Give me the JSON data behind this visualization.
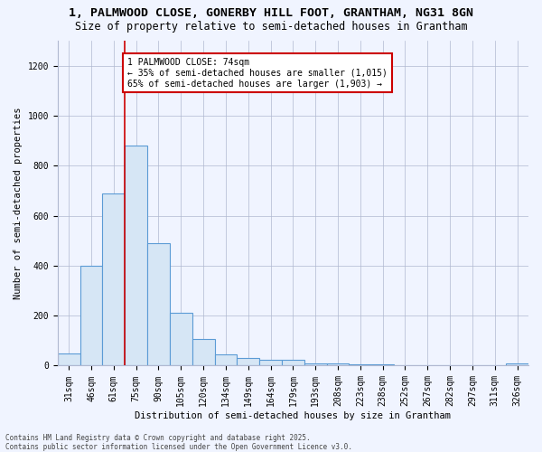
{
  "title": "1, PALMWOOD CLOSE, GONERBY HILL FOOT, GRANTHAM, NG31 8GN",
  "subtitle": "Size of property relative to semi-detached houses in Grantham",
  "xlabel": "Distribution of semi-detached houses by size in Grantham",
  "ylabel": "Number of semi-detached properties",
  "categories": [
    "31sqm",
    "46sqm",
    "61sqm",
    "75sqm",
    "90sqm",
    "105sqm",
    "120sqm",
    "134sqm",
    "149sqm",
    "164sqm",
    "179sqm",
    "193sqm",
    "208sqm",
    "223sqm",
    "238sqm",
    "252sqm",
    "267sqm",
    "282sqm",
    "297sqm",
    "311sqm",
    "326sqm"
  ],
  "values": [
    50,
    400,
    690,
    880,
    490,
    210,
    105,
    45,
    30,
    25,
    22,
    10,
    10,
    5,
    4,
    3,
    2,
    2,
    2,
    1,
    10
  ],
  "bar_color": "#d6e6f5",
  "bar_edge_color": "#5b9bd5",
  "red_line_x": 3,
  "red_line_color": "#cc0000",
  "annotation_text": "1 PALMWOOD CLOSE: 74sqm\n← 35% of semi-detached houses are smaller (1,015)\n65% of semi-detached houses are larger (1,903) →",
  "annotation_box_color": "#ffffff",
  "annotation_box_edge_color": "#cc0000",
  "footer_text": "Contains HM Land Registry data © Crown copyright and database right 2025.\nContains public sector information licensed under the Open Government Licence v3.0.",
  "background_color": "#f0f4ff",
  "ylim": [
    0,
    1300
  ],
  "yticks": [
    0,
    200,
    400,
    600,
    800,
    1000,
    1200
  ],
  "title_fontsize": 9.5,
  "subtitle_fontsize": 8.5,
  "axis_fontsize": 7.5,
  "tick_fontsize": 7,
  "annotation_fontsize": 7,
  "footer_fontsize": 5.5,
  "xlabel_fontsize": 7.5,
  "ylabel_fontsize": 7.5,
  "grid_color": "#b0b8d0"
}
